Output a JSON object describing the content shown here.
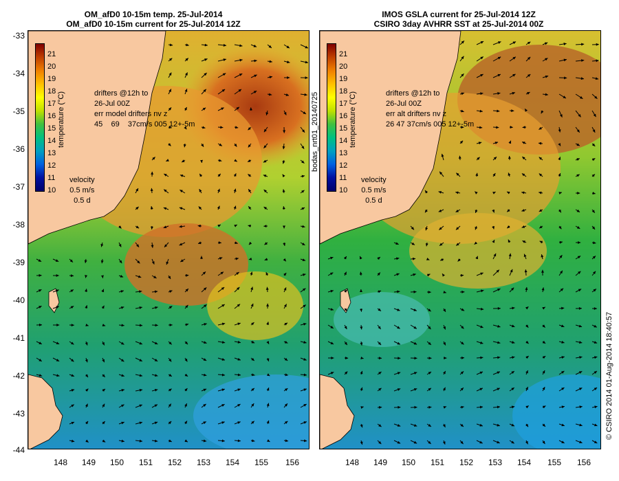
{
  "left_panel": {
    "title_line1": "OM_afD0 10-15m temp. 25-Jul-2014",
    "title_line2": "OM_afD0 10-15m current for 25-Jul-2014 12Z",
    "drifters_text": "drifters @12h to\n26-Jul 00Z\nerr model drifters nv z\n45    69    37cm/s 005 12+-5m"
  },
  "right_panel": {
    "title_line1": "IMOS GSLA current for 25-Jul-2014 12Z",
    "title_line2": "CSIRO 3day AVHRR SST at 25-Jul-2014 00Z",
    "drifters_text": "drifters @12h to\n26-Jul 00Z\nerr alt drifters nv z\n26 47 37cm/s 005 12+-5m",
    "side_label": "bodas_nrt01_20140725"
  },
  "colorbar": {
    "title": "temperature (°C)",
    "ticks": [
      "21",
      "20",
      "19",
      "18",
      "17",
      "16",
      "15",
      "14",
      "13",
      "12",
      "11",
      "10"
    ]
  },
  "velocity_legend": {
    "label": "velocity",
    "scale": "0.5 m/s",
    "duration": "0.5 d"
  },
  "axes": {
    "lat_ticks": [
      "-33",
      "-34",
      "-35",
      "-36",
      "-37",
      "-38",
      "-39",
      "-40",
      "-41",
      "-42",
      "-43",
      "-44"
    ],
    "lon_ticks": [
      "148",
      "149",
      "150",
      "151",
      "152",
      "153",
      "154",
      "155",
      "156"
    ]
  },
  "footer": {
    "credit": "© CSIRO 2014  01-Aug-2014 18:40:57"
  },
  "colors": {
    "land": "#f8c8a0",
    "warm_core": "#b04010",
    "orange": "#e89030",
    "yellow": "#e8d020",
    "green": "#40b040",
    "cool_green": "#20a080",
    "blue": "#2090d0"
  }
}
